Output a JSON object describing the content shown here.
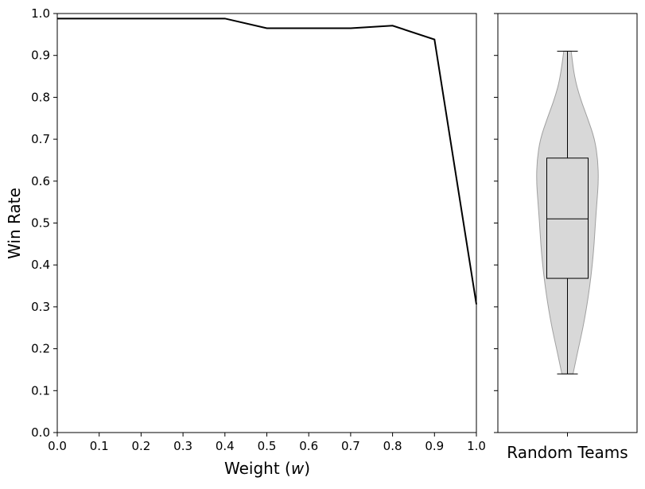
{
  "chart_data": [
    {
      "type": "line",
      "title": "",
      "xlabel": "Weight (",
      "xlabel_var": "w",
      "xlabel_close": ")",
      "ylabel": "Win Rate",
      "xlim": [
        0.0,
        1.0
      ],
      "ylim": [
        0.0,
        1.0
      ],
      "xticks": [
        "0.0",
        "0.1",
        "0.2",
        "0.3",
        "0.4",
        "0.5",
        "0.6",
        "0.7",
        "0.8",
        "0.9",
        "1.0"
      ],
      "yticks": [
        "0.0",
        "0.1",
        "0.2",
        "0.3",
        "0.4",
        "0.5",
        "0.6",
        "0.7",
        "0.8",
        "0.9",
        "1.0"
      ],
      "grid": false,
      "series": [
        {
          "name": "Win Rate",
          "color": "#000000",
          "x": [
            0.0,
            0.1,
            0.2,
            0.3,
            0.4,
            0.5,
            0.6,
            0.7,
            0.8,
            0.9,
            1.0
          ],
          "y": [
            0.988,
            0.988,
            0.988,
            0.988,
            0.988,
            0.965,
            0.965,
            0.965,
            0.971,
            0.938,
            0.306
          ]
        }
      ]
    },
    {
      "type": "violin",
      "title": "",
      "xlabel": "Random Teams",
      "ylim": [
        0.0,
        1.0
      ],
      "shared_y": true,
      "fill_color": "#d8d8d8",
      "edge_color": "#a0a0a0",
      "box": {
        "min": 0.14,
        "q1": 0.368,
        "median": 0.51,
        "q3": 0.655,
        "max": 0.91
      },
      "density": {
        "y": [
          0.14,
          0.2,
          0.25,
          0.3,
          0.35,
          0.4,
          0.45,
          0.5,
          0.55,
          0.6,
          0.65,
          0.7,
          0.75,
          0.8,
          0.85,
          0.91
        ],
        "width": [
          0.18,
          0.35,
          0.5,
          0.62,
          0.72,
          0.8,
          0.86,
          0.9,
          0.95,
          1.0,
          0.98,
          0.88,
          0.65,
          0.4,
          0.22,
          0.12
        ]
      }
    }
  ]
}
